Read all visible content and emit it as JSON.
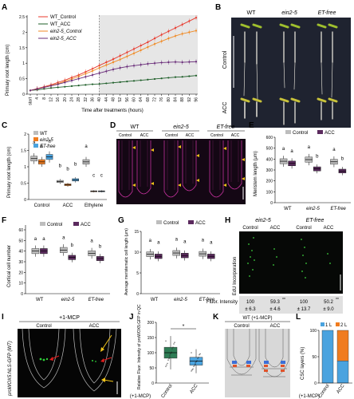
{
  "colors": {
    "wt_control": "#e8382c",
    "wt_acc": "#1f5f2a",
    "ein25_control": "#f08a24",
    "ein25_acc": "#6a2d7a",
    "box_grey": "#bdbdbd",
    "box_orange": "#f07c1f",
    "box_blue": "#4aa3df",
    "box_purple": "#5b2a5e",
    "box_green": "#2e7d55",
    "shade": "#e6e6e6"
  },
  "panelA": {
    "label": "A",
    "ylabel": "Primary root length (cm)",
    "xlabel": "Time after treatments (hours)",
    "legend": [
      "WT_Control",
      "WT_ACC",
      "ein2-5_Control",
      "ein2-5_ACC"
    ]
  },
  "panelB": {
    "label": "B",
    "cols": [
      "WT",
      "ein2-5",
      "ET-free"
    ],
    "rows": [
      "Control",
      "ACC"
    ]
  },
  "panelC": {
    "label": "C",
    "ylabel": "Primary root length (cm)",
    "legend": [
      "WT",
      "ein2-5",
      "ET-free"
    ],
    "groups": [
      "Control",
      "ACC",
      "Ethylene"
    ],
    "letters": [
      "a",
      "a",
      "a",
      "b",
      "b",
      "b",
      "a",
      "c",
      "c"
    ]
  },
  "panelD": {
    "label": "D",
    "genotypes": [
      "WT",
      "ein2-5",
      "ET-free"
    ],
    "treatments": [
      "Control",
      "ACC"
    ]
  },
  "panelE": {
    "label": "E",
    "ylabel": "Meristem length (μm)",
    "legend": [
      "Control",
      "ACC"
    ],
    "groups": [
      "WT",
      "ein2-5",
      "ET-free"
    ],
    "letters": [
      "a",
      "a",
      "a",
      "b",
      "a",
      "b"
    ]
  },
  "panelF": {
    "label": "F",
    "ylabel": "Cortical cell number",
    "legend": [
      "Control",
      "ACC"
    ],
    "groups": [
      "WT",
      "ein2-5",
      "ET-free"
    ],
    "letters": [
      "a",
      "a",
      "a",
      "b",
      "a",
      "b"
    ]
  },
  "panelG": {
    "label": "G",
    "ylabel": "Average meristematic cell length (μm)",
    "legend": [
      "Control",
      "ACC"
    ],
    "groups": [
      "WT",
      "ein2-5",
      "ET-free"
    ],
    "letters": [
      "a",
      "a",
      "a",
      "a",
      "a",
      "a"
    ]
  },
  "panelH": {
    "label": "H",
    "genotypes": [
      "ein2-5",
      "ET-free"
    ],
    "treatments": [
      "Control",
      "ACC",
      "Control",
      "ACC"
    ],
    "side_label": "EdU Incorporation",
    "fluor_label": "Fluor. Intensity",
    "values": [
      "100",
      "59.3",
      "100",
      "50.2"
    ],
    "errors": [
      "± 6.3",
      "± 4.6",
      "± 13.7",
      "± 9.0"
    ],
    "stars": "**"
  },
  "panelI": {
    "label": "I",
    "title": "+1-MCP",
    "treatments": [
      "Control",
      "ACC"
    ],
    "side_label": "proWOX5:NLS-GFP (WT)"
  },
  "panelJ": {
    "label": "J",
    "ylabel": "Relative Fluor. Intensity of proWOX5:GFP in QC",
    "xlabel_side": "(+1-MCP)",
    "groups": [
      "Control",
      "ACC"
    ],
    "star": "*"
  },
  "panelK": {
    "label": "K",
    "title": "WT (+1-MCP)",
    "treatments": [
      "Control",
      "ACC"
    ]
  },
  "panelL": {
    "label": "L",
    "ylabel": "CSC layers (%)",
    "legend": [
      "1 L",
      "2 L"
    ],
    "groups": [
      "Control",
      "ACC"
    ],
    "xlabel_side": "(+1-MCP)"
  },
  "chart_data": [
    {
      "panel": "A",
      "type": "line",
      "x": [
        "start",
        "4",
        "8",
        "12",
        "16",
        "20",
        "24",
        "28",
        "32",
        "36",
        "40",
        "44",
        "48",
        "52",
        "56",
        "60",
        "64",
        "68",
        "72",
        "76",
        "80",
        "84",
        "88",
        "92",
        "96"
      ],
      "series": [
        {
          "name": "WT_Control",
          "values": [
            0.12,
            0.18,
            0.24,
            0.3,
            0.38,
            0.45,
            0.54,
            0.62,
            0.72,
            0.82,
            0.93,
            1.03,
            1.13,
            1.24,
            1.35,
            1.46,
            1.57,
            1.68,
            1.8,
            1.92,
            2.03,
            2.14,
            2.25,
            2.36,
            2.47
          ]
        },
        {
          "name": "WT_ACC",
          "values": [
            0.12,
            0.14,
            0.17,
            0.2,
            0.22,
            0.24,
            0.26,
            0.28,
            0.3,
            0.32,
            0.33,
            0.35,
            0.37,
            0.39,
            0.41,
            0.43,
            0.45,
            0.47,
            0.49,
            0.51,
            0.53,
            0.55,
            0.56,
            0.58,
            0.6
          ]
        },
        {
          "name": "ein2-5_Control",
          "values": [
            0.12,
            0.17,
            0.22,
            0.28,
            0.34,
            0.41,
            0.49,
            0.57,
            0.66,
            0.75,
            0.85,
            0.94,
            1.03,
            1.12,
            1.22,
            1.32,
            1.42,
            1.52,
            1.62,
            1.71,
            1.8,
            1.88,
            1.95,
            2.0,
            2.05
          ]
        },
        {
          "name": "ein2-5_ACC",
          "values": [
            0.12,
            0.17,
            0.22,
            0.27,
            0.32,
            0.38,
            0.44,
            0.5,
            0.56,
            0.62,
            0.68,
            0.74,
            0.8,
            0.85,
            0.89,
            0.92,
            0.95,
            0.98,
            1.0,
            1.02,
            1.03,
            1.04,
            1.03,
            1.04,
            1.05
          ]
        }
      ],
      "xlabel": "Time after treatments (hours)",
      "ylabel": "Primary root length (cm)",
      "ylim": [
        0,
        2.5
      ],
      "yticks": [
        0,
        0.5,
        1.0,
        1.5,
        2.0,
        2.5
      ],
      "treatment_start_x": "40",
      "legend_position": "top-left"
    },
    {
      "panel": "C",
      "type": "bar",
      "categories": [
        "Control",
        "ACC",
        "Ethylene"
      ],
      "series": [
        {
          "name": "WT",
          "values": [
            1.25,
            0.55,
            1.15
          ]
        },
        {
          "name": "ein2-5",
          "values": [
            1.15,
            0.45,
            0.25
          ]
        },
        {
          "name": "ET-free",
          "values": [
            1.3,
            0.6,
            0.25
          ]
        }
      ],
      "ylabel": "Primary root length (cm)",
      "ylim": [
        0,
        2.0
      ],
      "yticks": [
        0.0,
        0.5,
        1.0,
        1.5,
        2.0
      ]
    },
    {
      "panel": "E",
      "type": "bar",
      "categories": [
        "WT",
        "ein2-5",
        "ET-free"
      ],
      "series": [
        {
          "name": "Control",
          "values": [
            380,
            395,
            375
          ]
        },
        {
          "name": "ACC",
          "values": [
            360,
            310,
            290
          ]
        }
      ],
      "ylabel": "Meristem length (μm)",
      "ylim": [
        0,
        600
      ],
      "yticks": [
        0,
        100,
        200,
        300,
        400,
        500,
        600
      ]
    },
    {
      "panel": "F",
      "type": "bar",
      "categories": [
        "WT",
        "ein2-5",
        "ET-free"
      ],
      "series": [
        {
          "name": "Control",
          "values": [
            40,
            41,
            38
          ]
        },
        {
          "name": "ACC",
          "values": [
            40,
            34,
            33
          ]
        }
      ],
      "ylabel": "Cortical cell number",
      "ylim": [
        0,
        60
      ],
      "yticks": [
        0,
        10,
        20,
        30,
        40,
        50,
        60
      ]
    },
    {
      "panel": "G",
      "type": "bar",
      "categories": [
        "WT",
        "ein2-5",
        "ET-free"
      ],
      "series": [
        {
          "name": "Control",
          "values": [
            9.5,
            9.8,
            9.6
          ]
        },
        {
          "name": "ACC",
          "values": [
            9.0,
            9.2,
            9.0
          ]
        }
      ],
      "ylabel": "Average meristematic cell length (μm)",
      "ylim": [
        0,
        15
      ],
      "yticks": [
        0,
        5,
        10,
        15
      ]
    },
    {
      "panel": "J",
      "type": "bar",
      "categories": [
        "Control",
        "ACC"
      ],
      "values": [
        100,
        72
      ],
      "ylabel": "Relative Fluor. Intensity of proWOX5:GFP in QC",
      "ylim": [
        0,
        200
      ],
      "yticks": [
        0,
        50,
        100,
        150,
        200
      ]
    },
    {
      "panel": "L",
      "type": "bar",
      "categories": [
        "Control",
        "ACC"
      ],
      "series": [
        {
          "name": "1 L",
          "values": [
            100,
            42
          ]
        },
        {
          "name": "2 L",
          "values": [
            0,
            58
          ]
        }
      ],
      "ylabel": "CSC layers (%)",
      "ylim": [
        0,
        100
      ],
      "yticks": [
        0,
        50,
        100
      ]
    }
  ]
}
